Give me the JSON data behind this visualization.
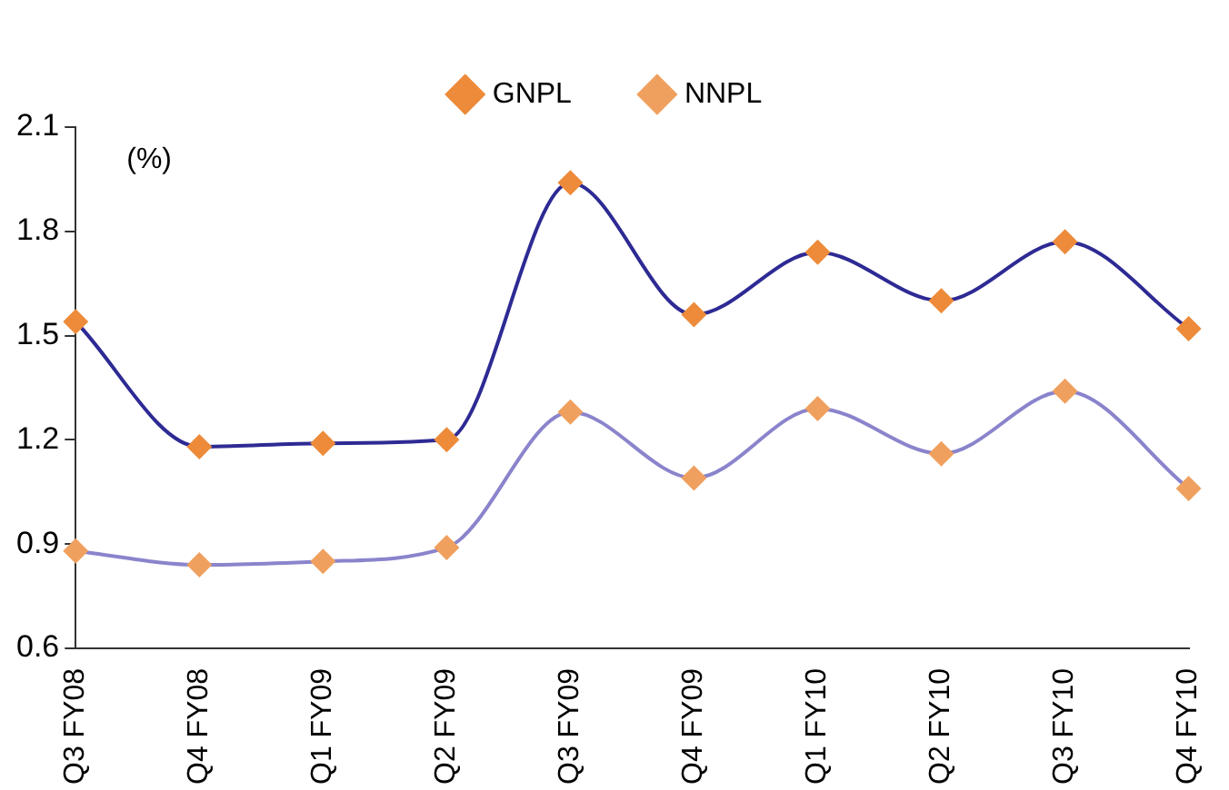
{
  "chart_data": {
    "type": "line",
    "categories": [
      "Q3 FY08",
      "Q4 FY08",
      "Q1 FY09",
      "Q2 FY09",
      "Q3 FY09",
      "Q4 FY09",
      "Q1 FY10",
      "Q2 FY10",
      "Q3 FY10",
      "Q4 FY10"
    ],
    "series": [
      {
        "name": "GNPL",
        "color": "#2e2a94",
        "colors": [
          "#ed8b3a",
          "#ed8b3a",
          "#ed8b3a",
          "#ed8b3a",
          "#ed8b3a",
          "#ed8b3a",
          "#ed8b3a",
          "#ed8b3a",
          "#ed8b3a",
          "#ed8b3a"
        ],
        "values": [
          1.54,
          1.18,
          1.19,
          1.2,
          1.94,
          1.56,
          1.74,
          1.6,
          1.77,
          1.52
        ]
      },
      {
        "name": "NNPL",
        "color": "#8a84cc",
        "colors": [
          "#f0a05e",
          "#f0a05e",
          "#f0a05e",
          "#f0a05e",
          "#f0a05e",
          "#f0a05e",
          "#f0a05e",
          "#f0a05e",
          "#f0a05e",
          "#f0a05e"
        ],
        "values": [
          0.88,
          0.84,
          0.85,
          0.89,
          1.28,
          1.09,
          1.29,
          1.16,
          1.34,
          1.06
        ]
      }
    ],
    "ylim": [
      0.6,
      2.1
    ],
    "yticks": [
      0.6,
      0.9,
      1.2,
      1.5,
      1.8,
      2.1
    ],
    "grid": false,
    "legend": "top",
    "marker": "diamond",
    "line_style": "solid",
    "annotations": [
      "(%)"
    ]
  }
}
